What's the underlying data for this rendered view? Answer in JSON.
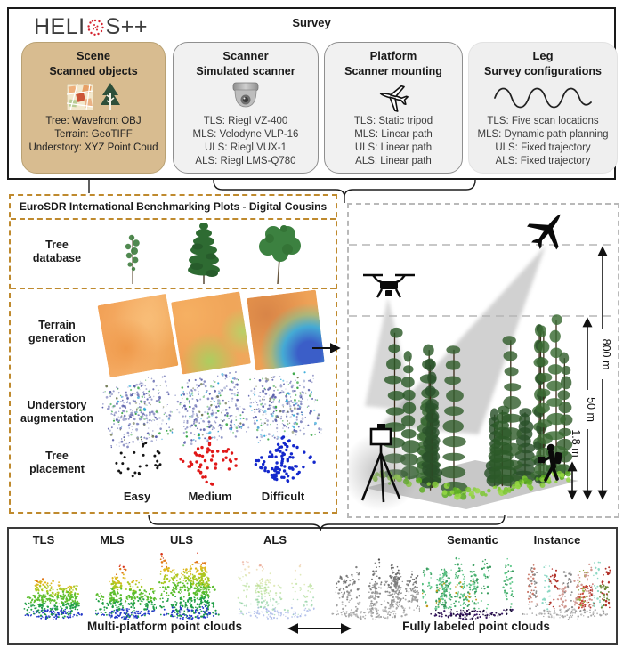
{
  "header": {
    "logo_left": "HELI",
    "logo_right": "S++",
    "survey_label": "Survey"
  },
  "colors": {
    "scene_box_fill": "#d8bc90",
    "cousins_dash": "#bf8a2e",
    "easy_dots": "#141414",
    "medium_dots": "#e01818",
    "difficult_dots": "#1428cc",
    "logo_icon_red": "#d42430"
  },
  "survey_boxes": [
    {
      "title": "Scene",
      "subtitle": "Scanned objects",
      "lines": [
        "Tree: Wavefront OBJ",
        "Terrain: GeoTIFF",
        "Understory: XYZ Point Coud"
      ]
    },
    {
      "title": "Scanner",
      "subtitle": "Simulated scanner",
      "lines": [
        "TLS: Riegl VZ-400",
        "MLS: Velodyne VLP-16",
        "ULS: Riegl VUX-1",
        "ALS: Riegl LMS-Q780"
      ]
    },
    {
      "title": "Platform",
      "subtitle": "Scanner mounting",
      "lines": [
        "TLS: Static tripod",
        "MLS: Linear path",
        "ULS: Linear path",
        "ALS: Linear path"
      ]
    },
    {
      "title": "Leg",
      "subtitle": "Survey configurations",
      "lines": [
        "TLS: Five scan locations",
        "MLS: Dynamic path planning",
        "ULS: Fixed trajectory",
        "ALS: Fixed trajectory"
      ]
    }
  ],
  "cousins_panel": {
    "title": "EuroSDR International Benchmarking Plots - Digital Cousins",
    "row_labels": [
      [
        "Tree",
        "database"
      ],
      [
        "Terrain",
        "generation"
      ],
      [
        "Understory",
        "augmentation"
      ],
      [
        "Tree",
        "placement"
      ]
    ],
    "difficulty_labels": [
      "Easy",
      "Medium",
      "Difficult"
    ]
  },
  "scene_panel": {
    "distance_labels": [
      "800 m",
      "50 m",
      "1.8 m"
    ]
  },
  "output_panel": {
    "cloud_labels": [
      "TLS",
      "MLS",
      "ULS",
      "ALS",
      "Semantic",
      "Instance"
    ],
    "left_caption": "Multi-platform point clouds",
    "right_caption": "Fully labeled point clouds"
  },
  "icons": {
    "logo_scan_icon": "red dotted scan circle",
    "map_icon": "orange street map tile",
    "tree_icon": "dark green conifer pictogram",
    "dome_camera_icon": "gray dome laser scanner",
    "airplane_outline_icon": "outlined airplane",
    "wave_icon": "sine wave trajectory",
    "airplane_icon": "black airplane silhouette",
    "drone_icon": "black quadcopter silhouette",
    "tripod_scanner_icon": "terrestrial scanner on tripod",
    "surveyor_person_icon": "person with backpack scanner",
    "double_arrow_icon": "left-right arrow"
  }
}
